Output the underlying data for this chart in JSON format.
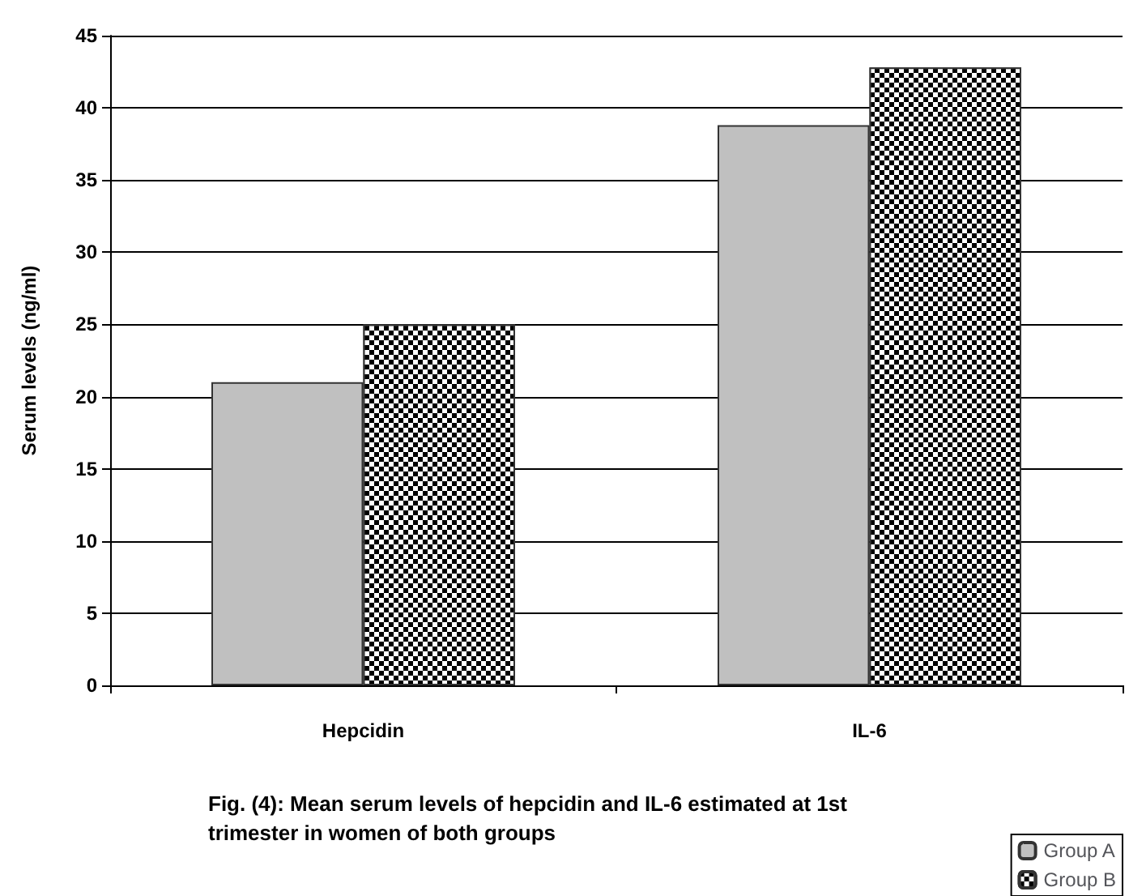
{
  "chart_data": {
    "type": "bar",
    "categories": [
      "Hepcidin",
      "IL-6"
    ],
    "series": [
      {
        "name": "Group A",
        "color": "#c0c0c0",
        "values": [
          21,
          38.8
        ]
      },
      {
        "name": "Group B",
        "color": "#000000",
        "values": [
          25,
          42.8
        ]
      }
    ],
    "ylabel": "Serum levels (ng/ml)",
    "ylim": [
      0,
      45
    ],
    "yticks": [
      0,
      5,
      10,
      15,
      20,
      25,
      30,
      35,
      40,
      45
    ],
    "grid": "y",
    "legend": "bottom right",
    "annotations": [
      "Fig. (4): Mean serum levels of hepcidin and IL-6 estimated at 1st trimester in women of both groups"
    ]
  }
}
